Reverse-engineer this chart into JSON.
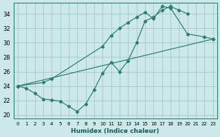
{
  "xlabel": "Humidex (Indice chaleur)",
  "ylabel": "",
  "bg_color": "#cce8e8",
  "grid_color": "#aacccc",
  "line_color": "#2e7d6e",
  "xlim": [
    -0.5,
    23.5
  ],
  "ylim": [
    19.5,
    35.5
  ],
  "xticks": [
    0,
    1,
    2,
    3,
    4,
    5,
    6,
    7,
    8,
    9,
    10,
    11,
    12,
    13,
    14,
    15,
    16,
    17,
    18,
    19,
    20,
    21,
    22,
    23
  ],
  "yticks": [
    20,
    22,
    24,
    26,
    28,
    30,
    32,
    34
  ],
  "line1_x": [
    0,
    1,
    2,
    3,
    4,
    5,
    6,
    7,
    8,
    9,
    10,
    11,
    12,
    13,
    14,
    15,
    16,
    17,
    18,
    19,
    20
  ],
  "line1_y": [
    24.0,
    23.7,
    23.0,
    22.2,
    22.1,
    21.9,
    21.2,
    20.5,
    21.5,
    23.5,
    25.8,
    27.3,
    26.0,
    27.5,
    30.0,
    33.0,
    33.5,
    34.5,
    35.0,
    34.5,
    34.0
  ],
  "line2_x": [
    0,
    3,
    4,
    10,
    11,
    12,
    13,
    14,
    15,
    16,
    17,
    18,
    20,
    22,
    23
  ],
  "line2_y": [
    24.0,
    24.5,
    25.0,
    29.5,
    31.0,
    32.0,
    32.8,
    33.5,
    34.2,
    33.3,
    35.0,
    34.8,
    31.2,
    30.8,
    30.5
  ],
  "line3_x": [
    0,
    23
  ],
  "line3_y": [
    24.0,
    30.5
  ]
}
